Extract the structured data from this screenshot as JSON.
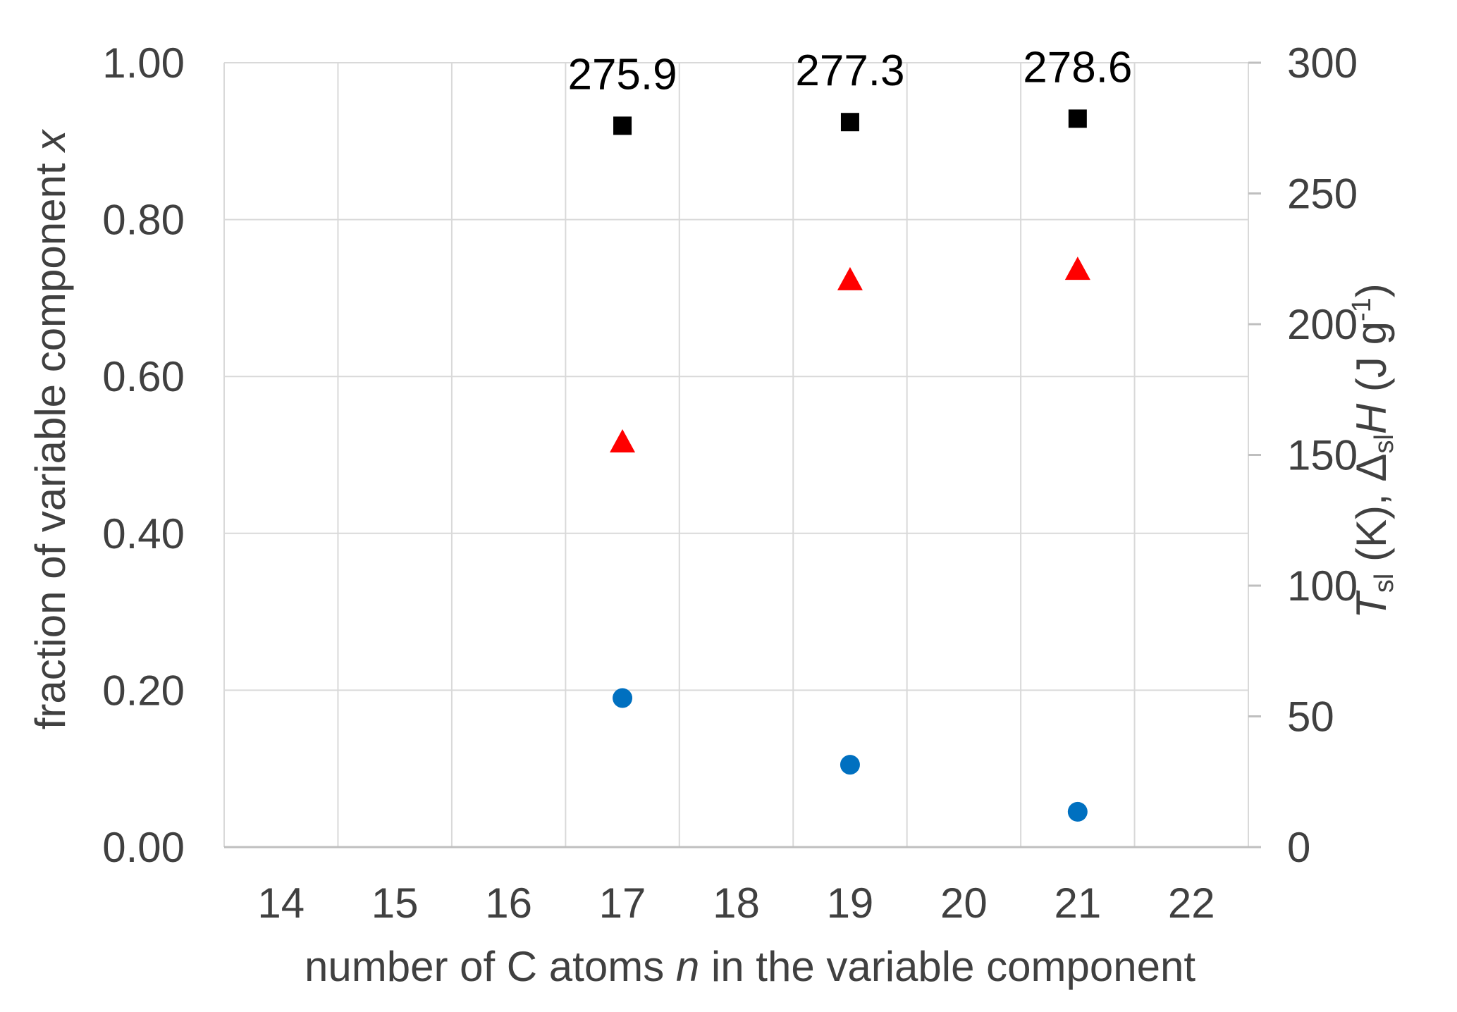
{
  "chart_data": {
    "type": "scatter",
    "xlabel": {
      "prefix": "number of C atoms ",
      "italic": "n",
      "suffix": " in the variable component"
    },
    "ylabel_left": {
      "prefix": "fraction of variable component ",
      "italic": "x"
    },
    "ylabel_right": {
      "T": "T",
      "sl1": "sl",
      "mid": " (K), ",
      "delta": "Δ",
      "sl2": "sl",
      "H": "H",
      "unit": " (J g",
      "sup": "-1",
      "close": ")"
    },
    "x_categories": [
      "14",
      "15",
      "16",
      "17",
      "18",
      "19",
      "20",
      "21",
      "22"
    ],
    "y_left_ticks": [
      "0.00",
      "0.20",
      "0.40",
      "0.60",
      "0.80",
      "1.00"
    ],
    "y_right_ticks": [
      "0",
      "50",
      "100",
      "150",
      "200",
      "250",
      "300"
    ],
    "ylim_left": [
      0,
      1
    ],
    "ylim_right": [
      0,
      300
    ],
    "grid": true,
    "series": [
      {
        "marker": "circle",
        "color": "#0070C0",
        "axis": "left",
        "points": [
          {
            "x": 17,
            "y": 0.19
          },
          {
            "x": 19,
            "y": 0.105
          },
          {
            "x": 21,
            "y": 0.045
          }
        ]
      },
      {
        "marker": "square",
        "color": "#000000",
        "axis": "right",
        "points": [
          {
            "x": 17,
            "y": 275.9,
            "label": "275.9"
          },
          {
            "x": 19,
            "y": 277.3,
            "label": "277.3"
          },
          {
            "x": 21,
            "y": 278.6,
            "label": "278.6"
          }
        ]
      },
      {
        "marker": "triangle",
        "color": "#FF0000",
        "axis": "right",
        "points": [
          {
            "x": 17,
            "y": 155
          },
          {
            "x": 19,
            "y": 217
          },
          {
            "x": 21,
            "y": 221
          }
        ]
      }
    ]
  }
}
